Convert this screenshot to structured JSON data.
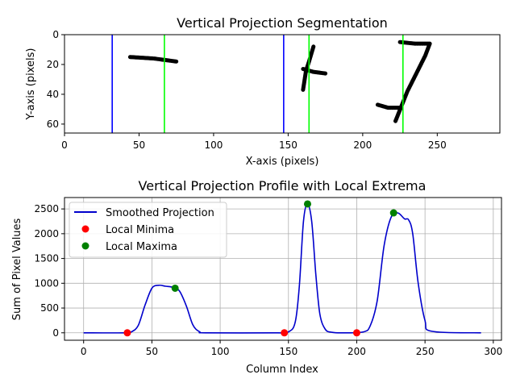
{
  "colors": {
    "boundary_blue": "#0000ff",
    "boundary_green": "#00ff00",
    "curve": "#0000cc",
    "minima": "#ff0000",
    "maxima": "#008000",
    "grid": "#b0b0b0",
    "ink": "#000000"
  },
  "chart_data": [
    {
      "type": "image",
      "title": "Vertical Projection Segmentation",
      "xlabel": "X-axis (pixels)",
      "ylabel": "Y-axis (pixels)",
      "xlim": [
        0,
        292
      ],
      "ylim": [
        66,
        0
      ],
      "x_ticks": [
        0,
        50,
        100,
        150,
        200,
        250
      ],
      "y_ticks": [
        0,
        20,
        40,
        60
      ],
      "blue_lines_x": [
        32,
        147
      ],
      "green_lines_x": [
        67,
        164,
        227
      ],
      "strokes": [
        [
          [
            44,
            15
          ],
          [
            60,
            16
          ],
          [
            75,
            18
          ]
        ],
        [
          [
            167,
            8
          ],
          [
            164,
            18
          ],
          [
            162,
            24
          ],
          [
            160,
            37
          ]
        ],
        [
          [
            160,
            23
          ],
          [
            167,
            25
          ],
          [
            175,
            26
          ]
        ],
        [
          [
            225,
            5
          ],
          [
            235,
            6
          ],
          [
            245,
            6
          ],
          [
            242,
            14
          ],
          [
            236,
            26
          ],
          [
            230,
            38
          ],
          [
            226,
            48
          ],
          [
            222,
            58
          ]
        ],
        [
          [
            210,
            47
          ],
          [
            217,
            49
          ],
          [
            225,
            49
          ]
        ]
      ]
    },
    {
      "type": "line",
      "title": "Vertical Projection Profile with Local Extrema",
      "xlabel": "Column Index",
      "ylabel": "Sum of Pixel Values",
      "xlim": [
        -14,
        306
      ],
      "ylim": [
        -150,
        2730
      ],
      "grid": true,
      "x_ticks": [
        0,
        50,
        100,
        150,
        200,
        250,
        300
      ],
      "y_ticks": [
        0,
        500,
        1000,
        1500,
        2000,
        2500
      ],
      "series": [
        {
          "name": "Smoothed Projection",
          "x": [
            0,
            30,
            35,
            40,
            45,
            50,
            55,
            60,
            65,
            70,
            75,
            80,
            85,
            90,
            140,
            150,
            155,
            158,
            161,
            164,
            167,
            170,
            173,
            177,
            182,
            190,
            205,
            210,
            215,
            220,
            225,
            230,
            235,
            238,
            241,
            245,
            250,
            255,
            291
          ],
          "y": [
            0,
            0,
            20,
            150,
            560,
            900,
            960,
            940,
            920,
            850,
            560,
            160,
            20,
            0,
            0,
            20,
            220,
            950,
            2250,
            2600,
            2250,
            1200,
            380,
            70,
            10,
            0,
            20,
            150,
            650,
            1750,
            2320,
            2420,
            2300,
            2280,
            2000,
            1000,
            250,
            30,
            0
          ]
        }
      ],
      "minima": {
        "name": "Local Minima",
        "x": [
          32,
          147,
          200
        ],
        "y": [
          0,
          0,
          0
        ]
      },
      "maxima": {
        "name": "Local Maxima",
        "x": [
          67,
          164,
          227
        ],
        "y": [
          900,
          2600,
          2420
        ]
      },
      "legend": "upper-left"
    }
  ]
}
